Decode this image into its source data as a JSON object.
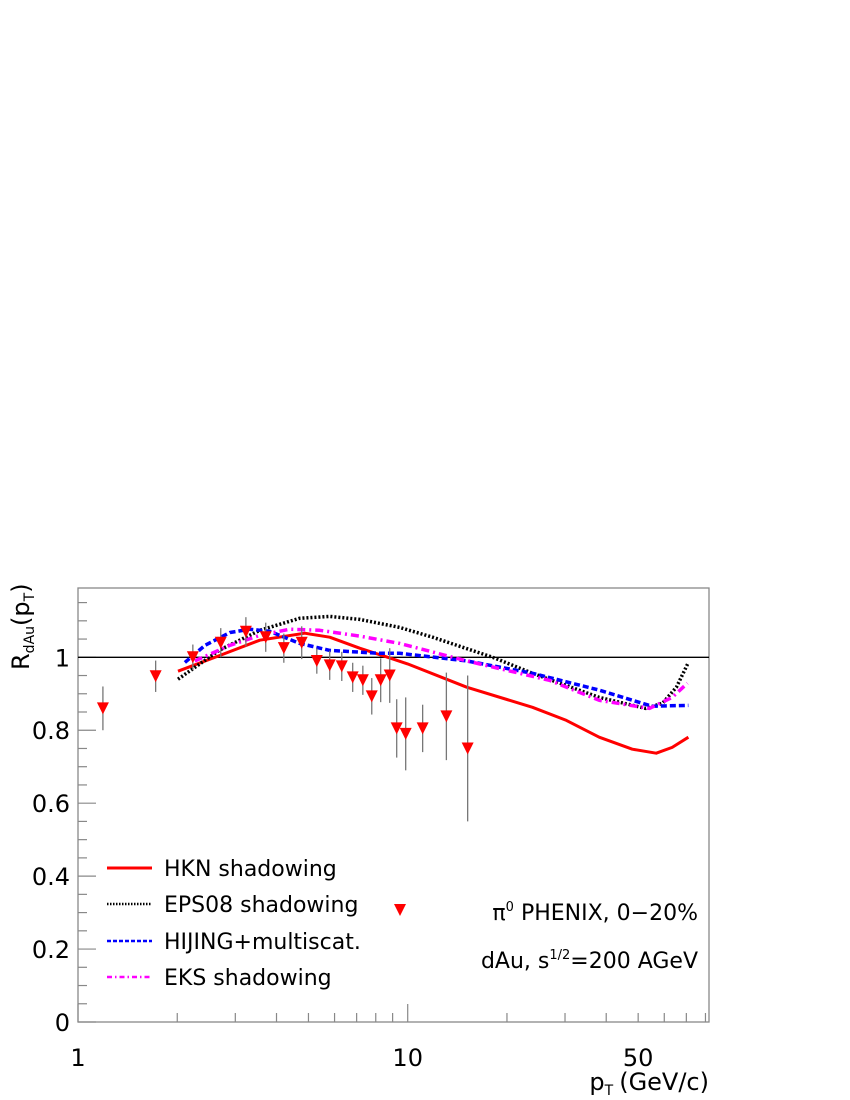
{
  "chart_data": {
    "type": "scatter",
    "xlabel": "p",
    "xlabel_sub": "T",
    "xlabel_unit": "(GeV/c)",
    "ylabel": "R",
    "ylabel_sub": "dAu",
    "ylabel_arg": "(p",
    "ylabel_arg_sub": "T",
    "ylabel_close": ")",
    "xscale": "log",
    "xlim": [
      1,
      82
    ],
    "ylim": [
      0,
      1.19
    ],
    "grid": false,
    "xticklabels": [
      {
        "v": 1,
        "t": "1"
      },
      {
        "v": 10,
        "t": "10"
      },
      {
        "v": 50,
        "t": "50"
      }
    ],
    "yticklabels": [
      {
        "v": 0,
        "t": "0"
      },
      {
        "v": 0.2,
        "t": "0.2"
      },
      {
        "v": 0.4,
        "t": "0.4"
      },
      {
        "v": 0.6,
        "t": "0.6"
      },
      {
        "v": 0.8,
        "t": "0.8"
      },
      {
        "v": 1,
        "t": "1"
      }
    ],
    "reference_line": 1,
    "data_points": {
      "name": "π⁰ PHENIX, 0−20%",
      "color": "#ff0000",
      "marker": "triangle-down",
      "x": [
        1.19,
        1.72,
        2.23,
        2.71,
        3.23,
        3.71,
        4.21,
        4.77,
        5.3,
        5.8,
        6.31,
        6.81,
        7.31,
        7.78,
        8.28,
        8.82,
        9.26,
        9.86,
        11.1,
        13.1,
        15.2
      ],
      "y": [
        0.86,
        0.948,
        1.0,
        1.04,
        1.07,
        1.055,
        1.025,
        1.04,
        0.99,
        0.978,
        0.975,
        0.945,
        0.937,
        0.893,
        0.937,
        0.95,
        0.805,
        0.79,
        0.805,
        0.838,
        0.75
      ],
      "err": [
        0.06,
        0.043,
        0.035,
        0.04,
        0.04,
        0.04,
        0.04,
        0.045,
        0.035,
        0.04,
        0.04,
        0.04,
        0.04,
        0.05,
        0.06,
        0.075,
        0.08,
        0.1,
        0.065,
        0.12,
        0.2
      ]
    },
    "series": [
      {
        "name": "HKN shadowing",
        "color": "#ff0000",
        "style": "solid",
        "x": [
          2.01,
          2.69,
          3.56,
          4.87,
          5.8,
          7.15,
          8.7,
          9.99,
          15.1,
          23.9,
          30.3,
          38.1,
          48.0,
          56.7,
          63.4,
          71.0
        ],
        "y": [
          0.962,
          1.005,
          1.047,
          1.066,
          1.055,
          1.025,
          1.0,
          0.982,
          0.918,
          0.863,
          0.827,
          0.781,
          0.748,
          0.737,
          0.753,
          0.781
        ]
      },
      {
        "name": "EPS08 shadowing",
        "color": "#000000",
        "style": "dotted",
        "x": [
          2.01,
          2.69,
          3.56,
          4.7,
          5.8,
          7.15,
          9.45,
          11.9,
          18.1,
          23.9,
          38.1,
          52.7,
          59.3,
          65.3,
          71.0
        ],
        "y": [
          0.94,
          1.02,
          1.074,
          1.107,
          1.112,
          1.104,
          1.082,
          1.055,
          1.0,
          0.956,
          0.89,
          0.86,
          0.874,
          0.918,
          0.986
        ]
      },
      {
        "name": "HIJING+multiscat.",
        "color": "#0000ff",
        "style": "dashed",
        "x": [
          2.11,
          2.43,
          2.89,
          3.32,
          3.82,
          4.7,
          5.8,
          8.2,
          9.45,
          15.1,
          23.9,
          38.1,
          55.0,
          71.0
        ],
        "y": [
          0.986,
          1.033,
          1.068,
          1.077,
          1.071,
          1.038,
          1.019,
          1.011,
          1.011,
          0.99,
          0.956,
          0.91,
          0.866,
          0.868
        ]
      },
      {
        "name": "EKS shadowing",
        "color": "#ff00ff",
        "style": "dashdot",
        "x": [
          2.26,
          2.89,
          3.56,
          4.39,
          5.41,
          7.15,
          9.45,
          15.1,
          26.9,
          38.1,
          54.1,
          63.4,
          70.5
        ],
        "y": [
          0.99,
          1.033,
          1.06,
          1.077,
          1.074,
          1.058,
          1.038,
          0.99,
          0.937,
          0.882,
          0.86,
          0.89,
          0.929
        ]
      }
    ],
    "legend_placement": "bottom-left",
    "annotations": {
      "points_label": "π",
      "points_label_sup": "0",
      "points_label_rest": " PHENIX, 0−20%",
      "energy_prefix": "dAu, s",
      "energy_sup": "1/2",
      "energy_rest": "=200 AGeV"
    }
  }
}
